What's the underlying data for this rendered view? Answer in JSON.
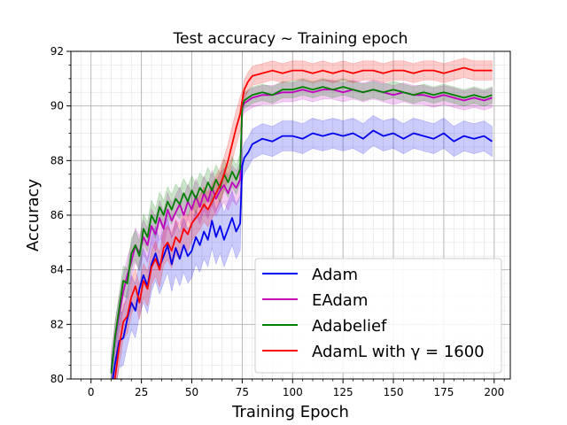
{
  "chart_data": {
    "type": "line",
    "title": "Test accuracy ~ Training epoch",
    "xlabel": "Training Epoch",
    "ylabel": "Accuracy",
    "xlim": [
      -10,
      208
    ],
    "ylim": [
      80,
      92
    ],
    "xticks": [
      0,
      25,
      50,
      75,
      100,
      125,
      150,
      175,
      200
    ],
    "yticks": [
      80,
      82,
      84,
      86,
      88,
      90,
      92
    ],
    "grid": true,
    "minor_grid": true,
    "legend_position": "lower-right",
    "series": [
      {
        "name": "Adam",
        "color": "#0000ee",
        "x": [
          10,
          12,
          14,
          16,
          18,
          20,
          22,
          24,
          26,
          28,
          30,
          32,
          34,
          36,
          38,
          40,
          42,
          44,
          46,
          48,
          50,
          52,
          54,
          56,
          58,
          60,
          62,
          64,
          66,
          68,
          70,
          72,
          74,
          75,
          76,
          78,
          80,
          85,
          90,
          95,
          100,
          105,
          110,
          115,
          120,
          125,
          130,
          135,
          140,
          145,
          150,
          155,
          160,
          165,
          170,
          175,
          180,
          185,
          190,
          195,
          199
        ],
        "values": [
          79.6,
          80.6,
          81.4,
          81.5,
          82.2,
          82.8,
          82.5,
          83.3,
          83.8,
          83.4,
          84.2,
          84.6,
          84.1,
          84.5,
          84.9,
          84.2,
          84.8,
          84.4,
          84.9,
          84.5,
          84.7,
          85.2,
          84.9,
          85.4,
          85.1,
          85.8,
          85.2,
          85.6,
          85.1,
          85.5,
          85.9,
          85.4,
          85.7,
          87.8,
          88.1,
          88.3,
          88.6,
          88.8,
          88.7,
          88.9,
          88.9,
          88.8,
          89.0,
          88.9,
          89.0,
          88.9,
          89.0,
          88.8,
          89.1,
          88.9,
          89.0,
          88.8,
          89.0,
          88.9,
          88.8,
          89.0,
          88.7,
          88.9,
          88.8,
          88.9,
          88.7
        ]
      },
      {
        "name": "EAdam",
        "color": "#bf00bf",
        "x": [
          10,
          12,
          14,
          16,
          18,
          20,
          22,
          24,
          26,
          28,
          30,
          32,
          34,
          36,
          38,
          40,
          42,
          44,
          46,
          48,
          50,
          52,
          54,
          56,
          58,
          60,
          62,
          64,
          66,
          68,
          70,
          72,
          74,
          75,
          76,
          78,
          80,
          85,
          90,
          95,
          100,
          105,
          110,
          115,
          120,
          125,
          130,
          135,
          140,
          145,
          150,
          155,
          160,
          165,
          170,
          175,
          180,
          185,
          190,
          195,
          199
        ],
        "values": [
          80.3,
          81.5,
          82.4,
          83.2,
          83.8,
          84.3,
          84.9,
          84.6,
          85.2,
          84.9,
          85.6,
          85.3,
          85.9,
          85.5,
          86.2,
          85.8,
          86.1,
          86.4,
          86.0,
          86.5,
          86.2,
          86.7,
          86.3,
          86.8,
          86.5,
          87.0,
          86.6,
          86.9,
          87.1,
          86.8,
          87.2,
          87.0,
          87.3,
          89.9,
          90.1,
          90.2,
          90.3,
          90.4,
          90.4,
          90.5,
          90.5,
          90.6,
          90.5,
          90.6,
          90.6,
          90.5,
          90.6,
          90.5,
          90.6,
          90.5,
          90.4,
          90.5,
          90.4,
          90.4,
          90.3,
          90.4,
          90.3,
          90.2,
          90.3,
          90.2,
          90.3
        ]
      },
      {
        "name": "Adabelief",
        "color": "#008000",
        "x": [
          10,
          12,
          14,
          16,
          18,
          20,
          22,
          24,
          26,
          28,
          30,
          32,
          34,
          36,
          38,
          40,
          42,
          44,
          46,
          48,
          50,
          52,
          54,
          56,
          58,
          60,
          62,
          64,
          66,
          68,
          70,
          72,
          74,
          75,
          76,
          78,
          80,
          85,
          90,
          95,
          100,
          105,
          110,
          115,
          120,
          125,
          130,
          135,
          140,
          145,
          150,
          155,
          160,
          165,
          170,
          175,
          180,
          185,
          190,
          195,
          199
        ],
        "values": [
          80.2,
          81.6,
          82.6,
          83.6,
          83.5,
          84.6,
          84.9,
          84.5,
          85.5,
          85.2,
          86.0,
          85.7,
          86.3,
          86.0,
          86.5,
          86.2,
          86.6,
          86.4,
          86.8,
          86.5,
          86.9,
          86.6,
          87.0,
          86.8,
          87.2,
          86.9,
          87.3,
          87.0,
          87.5,
          87.2,
          87.6,
          87.3,
          87.7,
          90.0,
          90.2,
          90.3,
          90.4,
          90.5,
          90.4,
          90.6,
          90.6,
          90.7,
          90.6,
          90.7,
          90.6,
          90.7,
          90.6,
          90.5,
          90.6,
          90.5,
          90.6,
          90.5,
          90.4,
          90.5,
          90.4,
          90.5,
          90.4,
          90.3,
          90.4,
          90.3,
          90.4
        ]
      },
      {
        "name": "AdamL with γ = 1600",
        "color": "#ff0000",
        "x": [
          10,
          12,
          14,
          16,
          18,
          20,
          22,
          24,
          26,
          28,
          30,
          32,
          34,
          36,
          38,
          40,
          42,
          44,
          46,
          48,
          50,
          52,
          54,
          56,
          58,
          60,
          62,
          64,
          66,
          68,
          70,
          72,
          74,
          75,
          76,
          78,
          80,
          85,
          90,
          95,
          100,
          105,
          110,
          115,
          120,
          125,
          130,
          135,
          140,
          145,
          150,
          155,
          160,
          165,
          170,
          175,
          180,
          185,
          190,
          195,
          199
        ],
        "values": [
          79.2,
          80.1,
          81.2,
          82.1,
          82.3,
          83.0,
          83.4,
          82.8,
          83.6,
          83.3,
          84.1,
          84.4,
          84.0,
          84.8,
          85.0,
          84.7,
          85.2,
          85.0,
          85.5,
          85.3,
          85.7,
          85.9,
          86.1,
          86.4,
          86.2,
          86.5,
          86.8,
          87.1,
          87.5,
          88.0,
          88.6,
          89.2,
          89.7,
          90.2,
          90.6,
          90.9,
          91.1,
          91.2,
          91.3,
          91.2,
          91.3,
          91.3,
          91.2,
          91.3,
          91.2,
          91.3,
          91.2,
          91.3,
          91.3,
          91.2,
          91.3,
          91.3,
          91.2,
          91.3,
          91.3,
          91.2,
          91.3,
          91.4,
          91.3,
          91.3,
          91.3
        ]
      }
    ],
    "band_half_width": [
      0.55,
      0.35,
      0.3,
      0.35
    ]
  }
}
